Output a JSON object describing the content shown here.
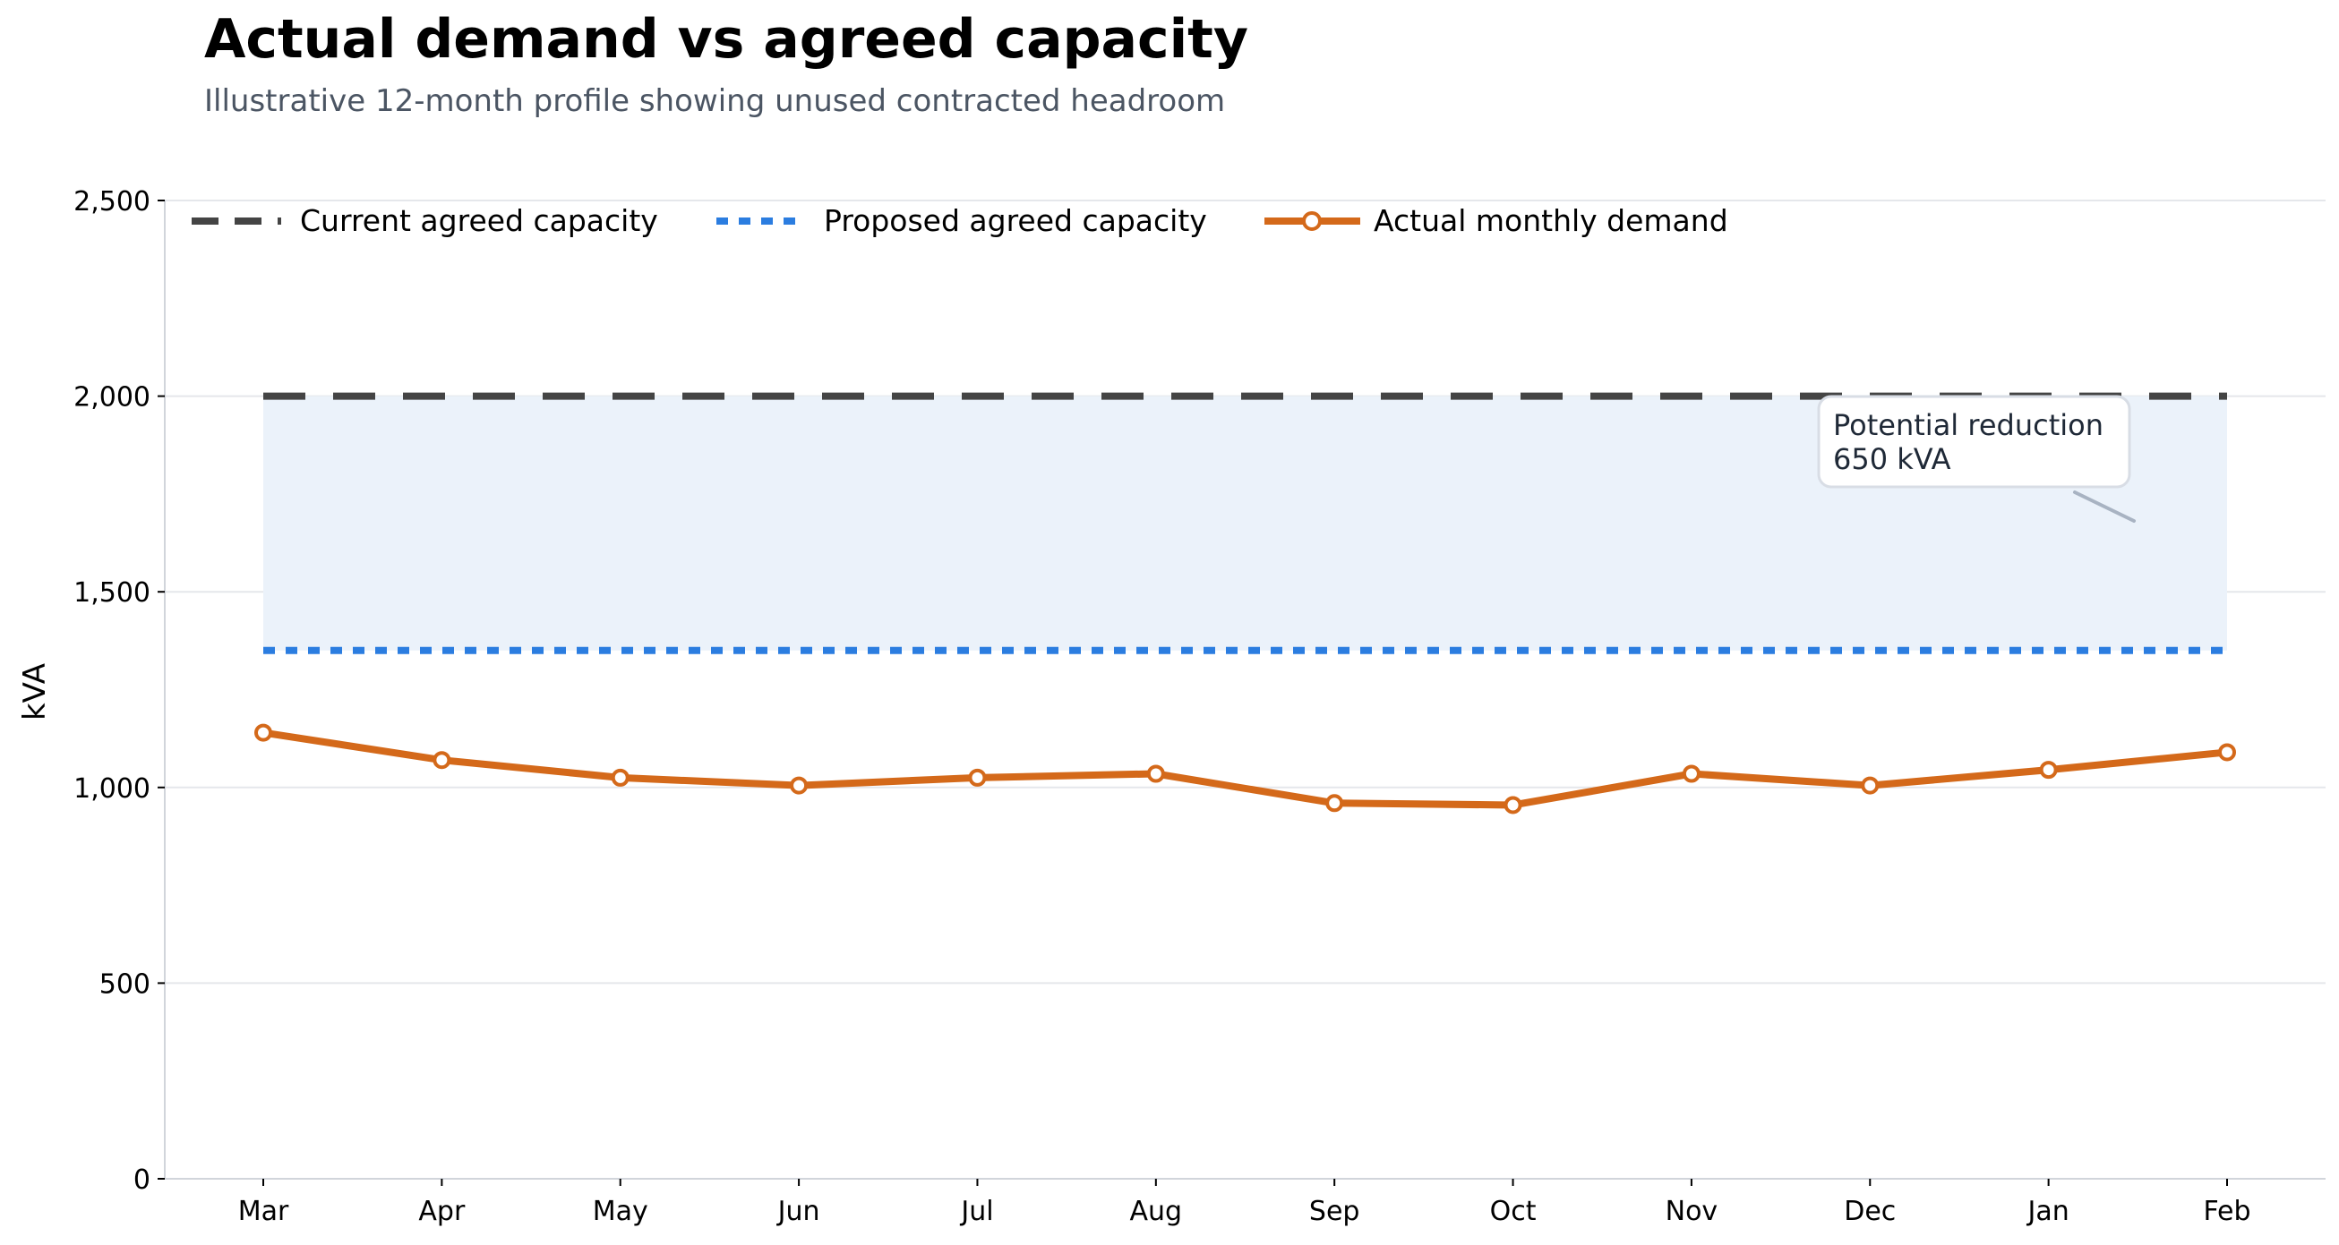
{
  "chart_data": {
    "type": "line",
    "title": "Actual demand vs agreed capacity",
    "subtitle": "Illustrative 12-month profile showing unused contracted headroom",
    "xlabel": "",
    "ylabel": "kVA",
    "ylim": [
      0,
      2500
    ],
    "yticks": [
      0,
      500,
      1000,
      1500,
      2000,
      2500
    ],
    "ytick_labels": [
      "0",
      "500",
      "1,000",
      "1,500",
      "2,000",
      "2,500"
    ],
    "grid": "horizontal",
    "legend_position": "top-left",
    "categories": [
      "Mar",
      "Apr",
      "May",
      "Jun",
      "Jul",
      "Aug",
      "Sep",
      "Oct",
      "Nov",
      "Dec",
      "Jan",
      "Feb"
    ],
    "series": [
      {
        "name": "Current agreed capacity",
        "style": "dashed",
        "color": "#444444",
        "values": [
          2000,
          2000,
          2000,
          2000,
          2000,
          2000,
          2000,
          2000,
          2000,
          2000,
          2000,
          2000
        ]
      },
      {
        "name": "Proposed agreed capacity",
        "style": "dotted",
        "color": "#2b7de0",
        "values": [
          1350,
          1350,
          1350,
          1350,
          1350,
          1350,
          1350,
          1350,
          1350,
          1350,
          1350,
          1350
        ]
      },
      {
        "name": "Actual monthly demand",
        "style": "solid-with-markers",
        "color": "#d4691a",
        "values": [
          1140,
          1070,
          1025,
          1005,
          1025,
          1035,
          960,
          955,
          1035,
          1005,
          1045,
          1090
        ]
      }
    ],
    "shaded_band": {
      "from": 1350,
      "to": 2000,
      "color": "#ebf2fa"
    },
    "annotation": {
      "line1": "Potential reduction",
      "line2": "650 kVA"
    }
  }
}
